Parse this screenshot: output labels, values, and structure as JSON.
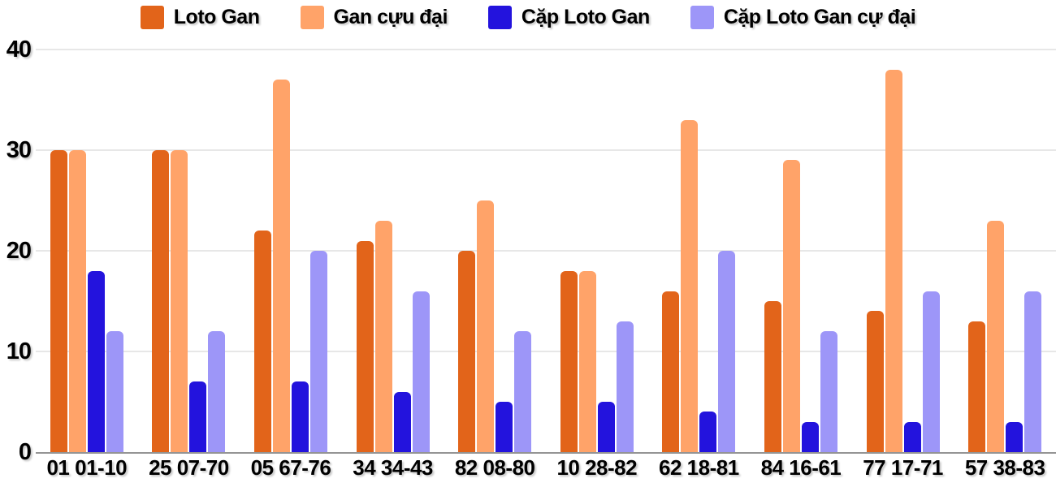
{
  "legend": {
    "items": [
      {
        "label": "Loto Gan",
        "color": "#E2641A"
      },
      {
        "label": "Gan cựu đại",
        "color": "#FFA369"
      },
      {
        "label": "Cặp Loto Gan",
        "color": "#2313DD"
      },
      {
        "label": "Cặp Loto Gan cự đại",
        "color": "#9D96F8"
      }
    ]
  },
  "chart_data": {
    "type": "bar",
    "categories": [
      "01 01-10",
      "25 07-70",
      "05 67-76",
      "34 34-43",
      "82 08-80",
      "10 28-82",
      "62 18-81",
      "84 16-61",
      "77 17-71",
      "57 38-83"
    ],
    "series": [
      {
        "name": "Loto Gan",
        "color": "#E2641A",
        "values": [
          30,
          30,
          22,
          21,
          20,
          18,
          16,
          15,
          14,
          13
        ]
      },
      {
        "name": "Gan cựu đại",
        "color": "#FFA369",
        "values": [
          30,
          30,
          37,
          23,
          25,
          18,
          33,
          29,
          38,
          23
        ]
      },
      {
        "name": "Cặp Loto Gan",
        "color": "#2313DD",
        "values": [
          18,
          7,
          7,
          6,
          5,
          5,
          4,
          3,
          3,
          3
        ]
      },
      {
        "name": "Cặp Loto Gan cự đại",
        "color": "#9D96F8",
        "values": [
          12,
          12,
          20,
          16,
          12,
          13,
          20,
          12,
          16,
          16
        ]
      }
    ],
    "title": "",
    "xlabel": "",
    "ylabel": "",
    "ylim": [
      0,
      40
    ],
    "yticks": [
      0,
      10,
      20,
      30,
      40
    ],
    "grid": true,
    "legend_position": "top"
  },
  "colors": {
    "gridline": "#e7e7e7",
    "axisline": "#949494",
    "text": "#000000",
    "background": "#ffffff"
  }
}
